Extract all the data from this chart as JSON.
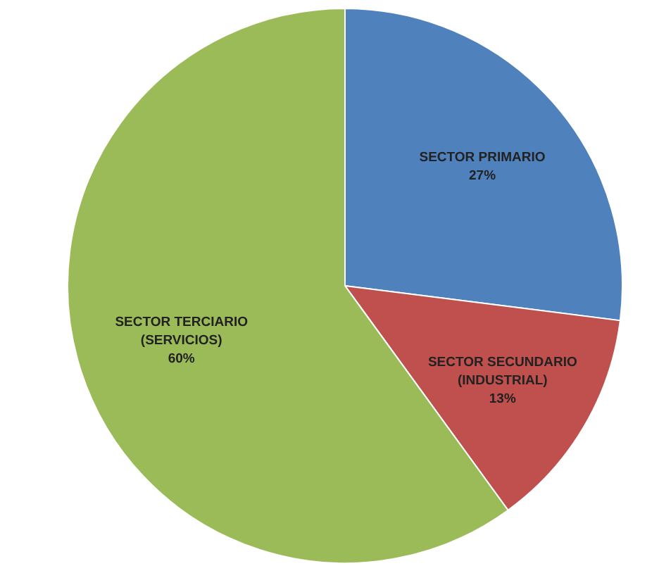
{
  "chart_data": {
    "type": "pie",
    "categories": [
      "SECTOR PRIMARIO",
      "SECTOR SECUNDARIO (INDUSTRIAL)",
      "SECTOR TERCIARIO (SERVICIOS)"
    ],
    "values": [
      27,
      13,
      60
    ],
    "value_labels": [
      "27%",
      "13%",
      "60%"
    ],
    "colors": [
      "#4f81bd",
      "#c0504d",
      "#9bbb59"
    ]
  }
}
